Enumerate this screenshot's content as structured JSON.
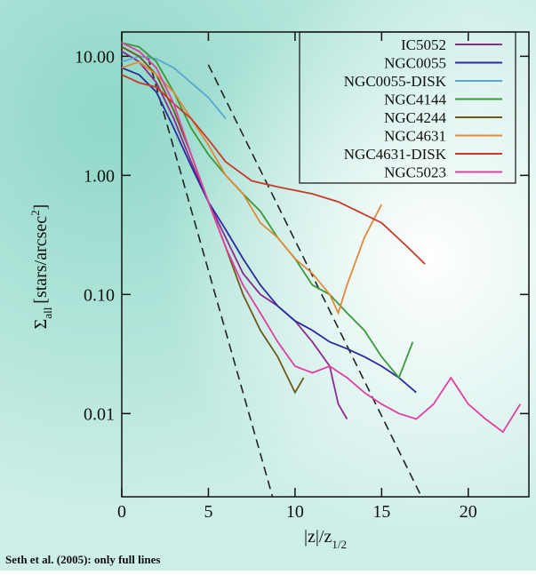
{
  "chart_data": {
    "type": "line",
    "ylabel_parts": [
      "Σ",
      "all",
      "[stars/arcsec",
      "2",
      "]"
    ],
    "xlabel_parts": [
      "|z|/z",
      "1/2"
    ],
    "footnote": "Seth et al. (2005): only full lines",
    "log_y": true,
    "legend": "upper right",
    "xlim": [
      0,
      23.5
    ],
    "ylim": [
      0.002,
      16
    ],
    "xticks": [
      0,
      5,
      10,
      15,
      20
    ],
    "yticks": [
      {
        "value": 10,
        "label": "10.00"
      },
      {
        "value": 1,
        "label": "1.00"
      },
      {
        "value": 0.1,
        "label": "0.10"
      },
      {
        "value": 0.01,
        "label": "0.01"
      }
    ],
    "series": [
      {
        "name": "IC5052",
        "color": "#8e2a90",
        "x": [
          0,
          1,
          2,
          3,
          4,
          5,
          6,
          7,
          8,
          9,
          10,
          11,
          12,
          12.5,
          13
        ],
        "values": [
          11,
          9,
          6,
          3,
          1.3,
          0.6,
          0.3,
          0.15,
          0.1,
          0.08,
          0.06,
          0.04,
          0.025,
          0.012,
          0.009
        ]
      },
      {
        "name": "NGC0055",
        "color": "#2b2b9c",
        "x": [
          0,
          1,
          2,
          3,
          4,
          5,
          6,
          7,
          8,
          9,
          10,
          11,
          12,
          13,
          14,
          15,
          16,
          17
        ],
        "values": [
          8,
          7,
          5,
          2.5,
          1.2,
          0.6,
          0.35,
          0.2,
          0.12,
          0.08,
          0.06,
          0.05,
          0.04,
          0.035,
          0.03,
          0.025,
          0.02,
          0.015
        ]
      },
      {
        "name": "NGC0055-DISK",
        "color": "#5aa8d0",
        "x": [
          0,
          1,
          2,
          3,
          4,
          5,
          6
        ],
        "values": [
          9,
          10,
          9.5,
          8,
          6,
          4.5,
          3
        ]
      },
      {
        "name": "NGC4144",
        "color": "#3a9a3a",
        "x": [
          0,
          1,
          2,
          3,
          4,
          5,
          6,
          7,
          8,
          9,
          10,
          11,
          12,
          13,
          14,
          15,
          16,
          16.8
        ],
        "values": [
          13,
          12,
          9,
          5,
          2.5,
          1.5,
          1.0,
          0.7,
          0.5,
          0.3,
          0.2,
          0.12,
          0.1,
          0.07,
          0.05,
          0.03,
          0.02,
          0.04
        ]
      },
      {
        "name": "NGC4244",
        "color": "#6b5a1a",
        "x": [
          0,
          1,
          2,
          3,
          4,
          5,
          6,
          7,
          8,
          9,
          10,
          10.5
        ],
        "values": [
          12,
          10,
          7,
          3.5,
          1.5,
          0.6,
          0.25,
          0.1,
          0.05,
          0.03,
          0.015,
          0.02
        ]
      },
      {
        "name": "NGC4631",
        "color": "#e08a3a",
        "x": [
          0,
          1,
          2,
          3,
          4,
          5,
          6,
          7,
          8,
          9,
          10,
          11,
          12,
          12.5,
          13,
          14,
          15
        ],
        "values": [
          8,
          9,
          7,
          5,
          3,
          1.8,
          1.0,
          0.7,
          0.4,
          0.3,
          0.2,
          0.15,
          0.1,
          0.07,
          0.12,
          0.3,
          0.57
        ]
      },
      {
        "name": "NGC4631-DISK",
        "color": "#c83a2a",
        "x": [
          0,
          1,
          2,
          3,
          4,
          5,
          6,
          7.5,
          9,
          11,
          12.5,
          15,
          16.5,
          17.5
        ],
        "values": [
          7,
          6,
          5.5,
          4,
          3,
          2,
          1.3,
          0.9,
          0.8,
          0.7,
          0.6,
          0.4,
          0.25,
          0.18
        ]
      },
      {
        "name": "NGC5023",
        "color": "#e040a0",
        "x": [
          0,
          1,
          2,
          3,
          4,
          5,
          6,
          7,
          8,
          9,
          10,
          11,
          12,
          13,
          14,
          15,
          16,
          17,
          18,
          19,
          20,
          21,
          22,
          23
        ],
        "values": [
          13,
          11,
          8,
          4,
          1.5,
          0.6,
          0.25,
          0.12,
          0.07,
          0.04,
          0.025,
          0.022,
          0.025,
          0.02,
          0.015,
          0.012,
          0.01,
          0.009,
          0.012,
          0.02,
          0.012,
          0.009,
          0.007,
          0.012
        ]
      }
    ],
    "reference_lines": [
      {
        "color": "#222222",
        "x": [
          1.5,
          8.7
        ],
        "values": [
          10,
          0.002
        ]
      },
      {
        "color": "#222222",
        "x": [
          5,
          17.3
        ],
        "values": [
          8.5,
          0.002
        ]
      }
    ]
  }
}
